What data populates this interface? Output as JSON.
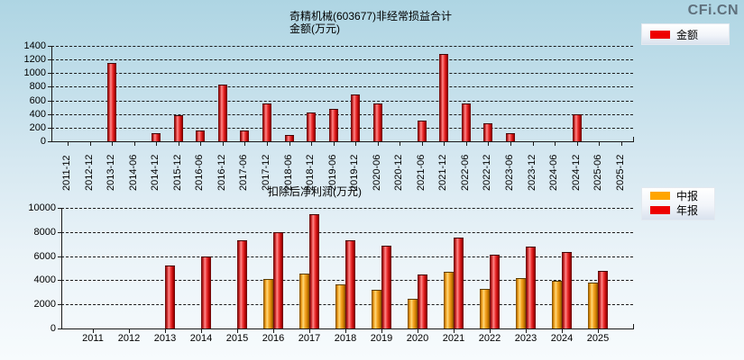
{
  "logo": "CFi.CN",
  "chart_data": [
    {
      "type": "bar",
      "title": "奇精机械(603677)非经常损益合计",
      "subtitle": "金额(万元)",
      "categories": [
        "2011-12",
        "2012-12",
        "2013-12",
        "2014-06",
        "2014-12",
        "2015-12",
        "2016-06",
        "2016-12",
        "2017-06",
        "2017-12",
        "2018-06",
        "2018-12",
        "2019-06",
        "2019-12",
        "2020-06",
        "2020-12",
        "2021-06",
        "2021-12",
        "2022-06",
        "2022-12",
        "2023-06",
        "2023-12",
        "2024-06",
        "2024-12",
        "2025-06",
        "2025-12"
      ],
      "series": [
        {
          "name": "金额",
          "color": "#ee0000",
          "values": [
            0,
            0,
            1150,
            0,
            125,
            380,
            160,
            830,
            160,
            560,
            95,
            420,
            475,
            690,
            560,
            0,
            310,
            1280,
            560,
            260,
            125,
            0,
            0,
            390,
            0,
            0
          ]
        }
      ],
      "ylim": [
        0,
        1400
      ],
      "ytick_step": 200,
      "grid": true,
      "legend_position": "top-right",
      "xlabel_rotation": 90
    },
    {
      "type": "bar",
      "title": "扣除后净利润(万元)",
      "categories": [
        "2011",
        "2012",
        "2013",
        "2014",
        "2015",
        "2016",
        "2017",
        "2018",
        "2019",
        "2020",
        "2021",
        "2022",
        "2023",
        "2024",
        "2025"
      ],
      "series": [
        {
          "name": "中报",
          "color": "#ffa500",
          "values": [
            0,
            0,
            0,
            0,
            0,
            4100,
            4530,
            3690,
            3200,
            2480,
            4670,
            3300,
            4170,
            3930,
            3780
          ]
        },
        {
          "name": "年报",
          "color": "#ee0000",
          "values": [
            0,
            0,
            5200,
            6000,
            7300,
            7950,
            9450,
            7300,
            6900,
            4500,
            7540,
            6100,
            6770,
            6340,
            4750
          ]
        }
      ],
      "ylim": [
        0,
        10000
      ],
      "ytick_step": 2000,
      "grid": true,
      "legend_position": "right",
      "xlabel_rotation": 0
    }
  ]
}
